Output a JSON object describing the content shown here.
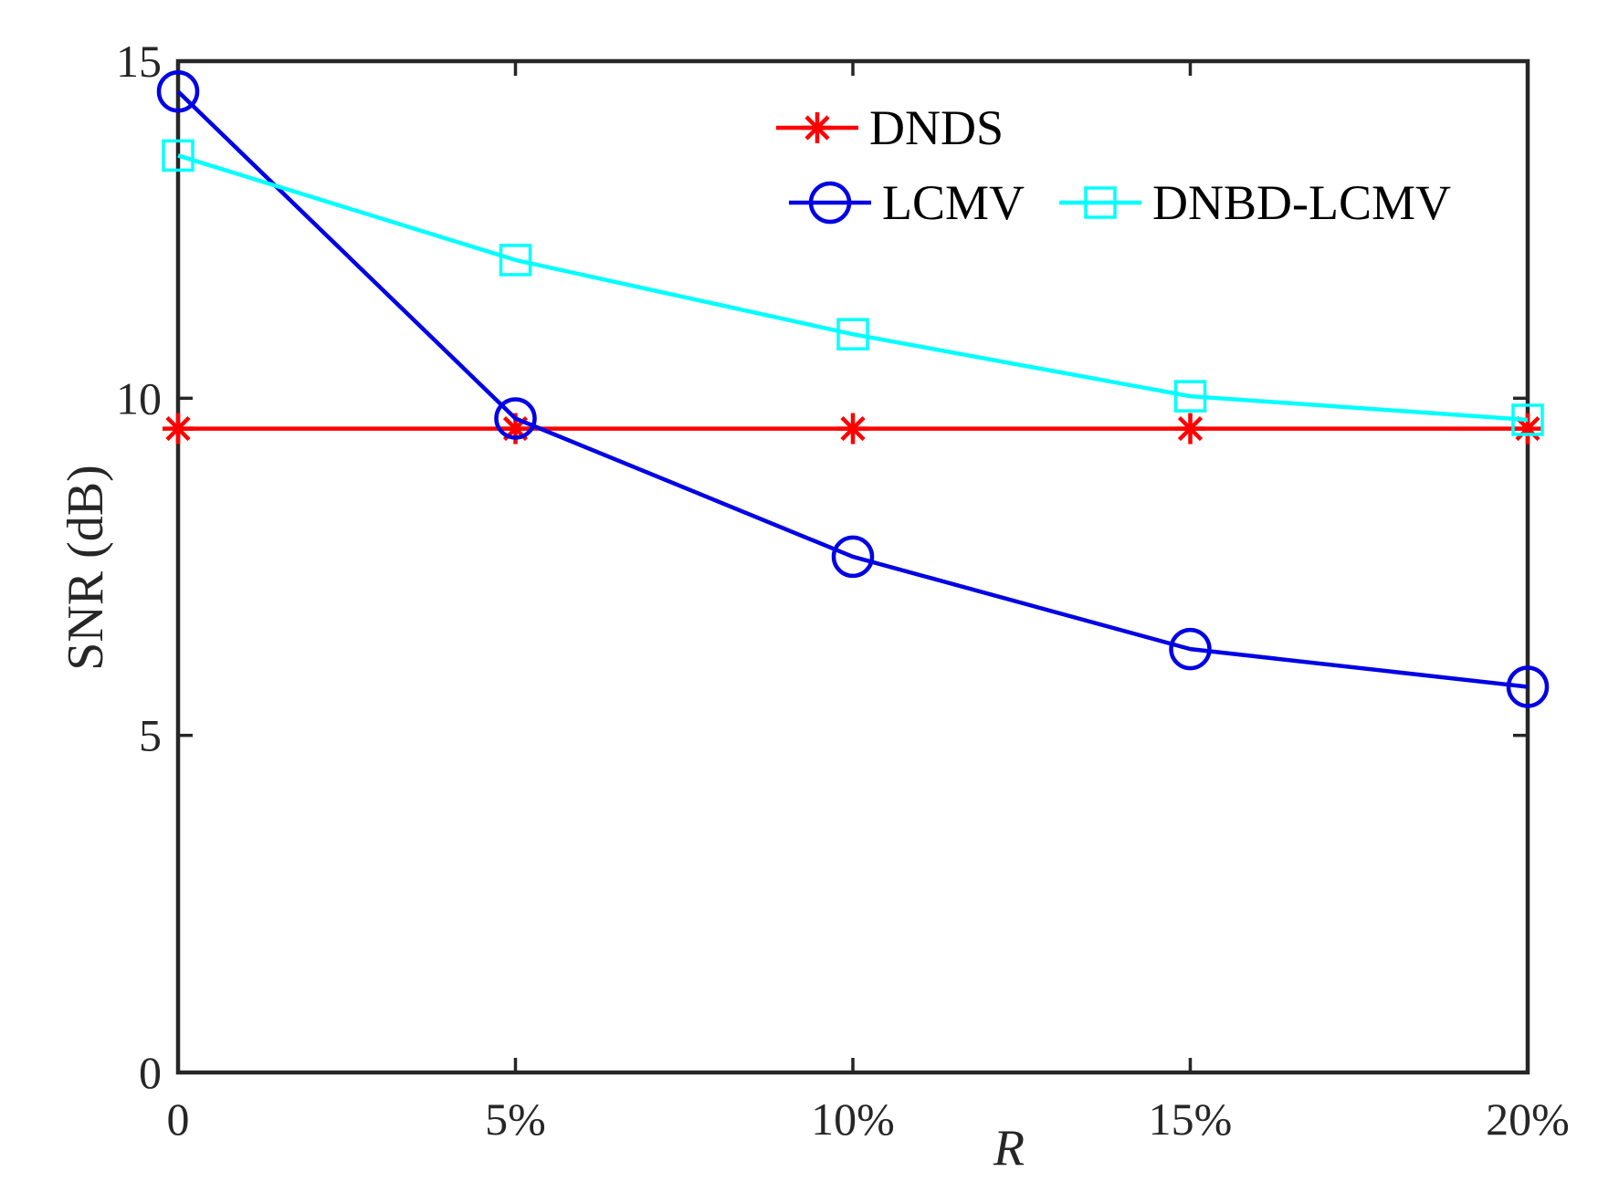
{
  "chart_data": {
    "type": "line",
    "title": "",
    "xlabel": "R",
    "ylabel": "SNR (dB)",
    "x": [
      0,
      5,
      10,
      15,
      20
    ],
    "x_tick_labels": [
      "0",
      "5%",
      "10%",
      "15%",
      "20%"
    ],
    "xlim": [
      0,
      20
    ],
    "ylim": [
      0,
      15
    ],
    "y_ticks": [
      0,
      5,
      10,
      15
    ],
    "y_tick_labels": [
      "0",
      "5",
      "10",
      "15"
    ],
    "grid": false,
    "legend_position": "top-right",
    "series": [
      {
        "name": "DNDS",
        "color": "#ff0000",
        "marker": "asterisk",
        "values": [
          9.55,
          9.55,
          9.55,
          9.55,
          9.55
        ]
      },
      {
        "name": "LCMV",
        "color": "#0000e6",
        "marker": "circle",
        "values": [
          14.55,
          9.7,
          7.65,
          6.28,
          5.72
        ]
      },
      {
        "name": "DNBD-LCMV",
        "color": "#00ffff",
        "marker": "square",
        "values": [
          13.6,
          12.05,
          10.95,
          10.03,
          9.68
        ]
      }
    ]
  }
}
